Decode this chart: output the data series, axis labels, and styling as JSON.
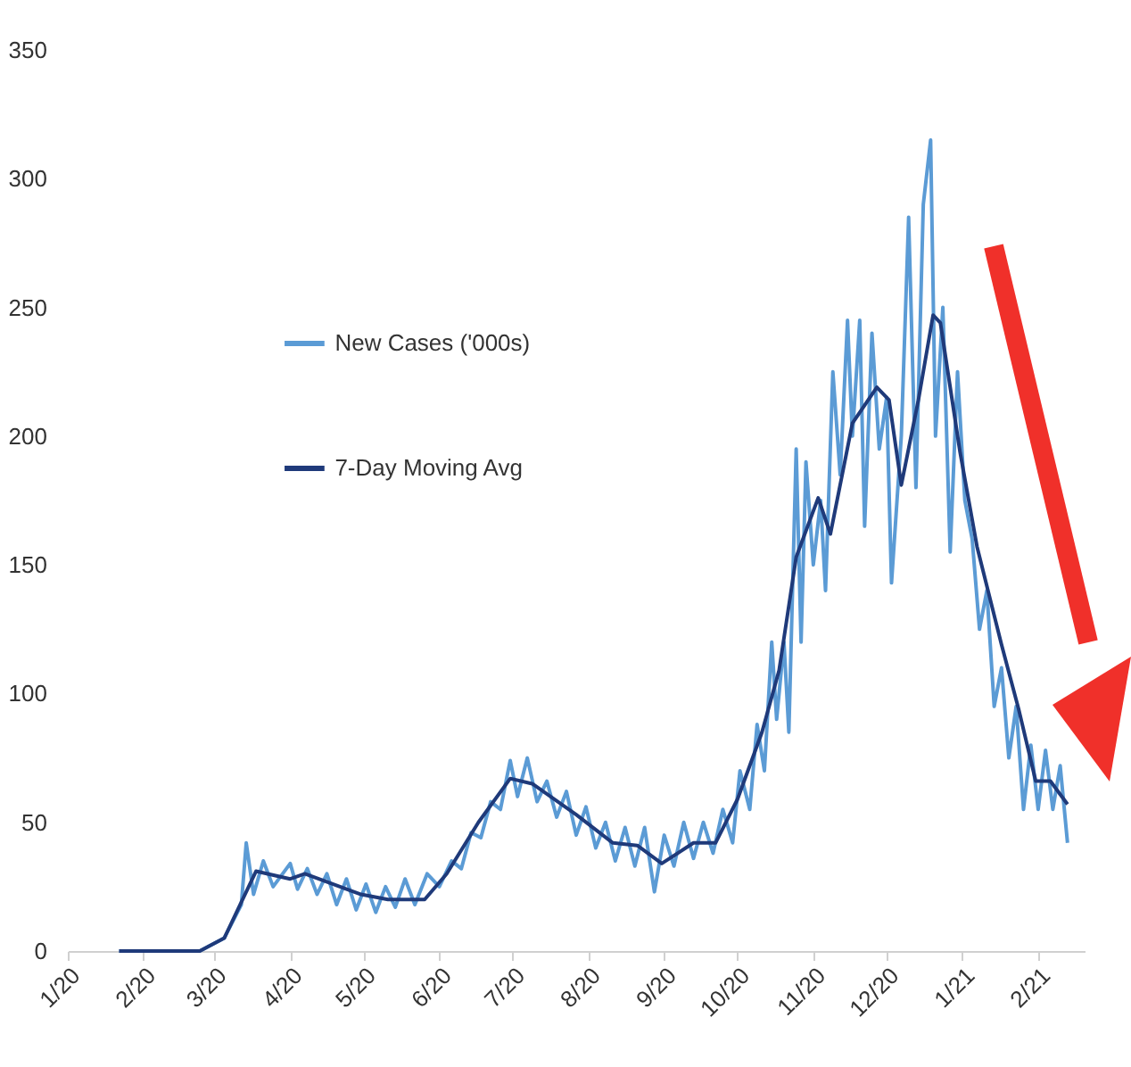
{
  "chart_data": {
    "type": "line",
    "xlim": [
      "2020-01-01",
      "2021-02-20"
    ],
    "ylim": [
      0,
      350
    ],
    "yticks": [
      0,
      50,
      100,
      150,
      200,
      250,
      300,
      350
    ],
    "xticks": [
      {
        "value": "2020-01-01",
        "label": "1/20"
      },
      {
        "value": "2020-02-01",
        "label": "2/20"
      },
      {
        "value": "2020-03-01",
        "label": "3/20"
      },
      {
        "value": "2020-04-01",
        "label": "4/20"
      },
      {
        "value": "2020-05-01",
        "label": "5/20"
      },
      {
        "value": "2020-06-01",
        "label": "6/20"
      },
      {
        "value": "2020-07-01",
        "label": "7/20"
      },
      {
        "value": "2020-08-01",
        "label": "8/20"
      },
      {
        "value": "2020-09-01",
        "label": "9/20"
      },
      {
        "value": "2020-10-01",
        "label": "10/20"
      },
      {
        "value": "2020-11-01",
        "label": "11/20"
      },
      {
        "value": "2020-12-01",
        "label": "12/20"
      },
      {
        "value": "2021-01-01",
        "label": "1/21"
      },
      {
        "value": "2021-02-01",
        "label": "2/21"
      }
    ],
    "legend": "top left",
    "series": [
      {
        "name": "New Cases ('000s)",
        "color": "#5b9bd5",
        "x": [
          "2020-01-22",
          "2020-02-24",
          "2020-03-05",
          "2020-03-12",
          "2020-03-14",
          "2020-03-17",
          "2020-03-21",
          "2020-03-25",
          "2020-04-01",
          "2020-04-04",
          "2020-04-08",
          "2020-04-12",
          "2020-04-16",
          "2020-04-20",
          "2020-04-24",
          "2020-04-28",
          "2020-05-02",
          "2020-05-06",
          "2020-05-10",
          "2020-05-14",
          "2020-05-18",
          "2020-05-22",
          "2020-05-27",
          "2020-06-01",
          "2020-06-06",
          "2020-06-10",
          "2020-06-14",
          "2020-06-18",
          "2020-06-22",
          "2020-06-26",
          "2020-06-30",
          "2020-07-03",
          "2020-07-07",
          "2020-07-11",
          "2020-07-15",
          "2020-07-19",
          "2020-07-23",
          "2020-07-27",
          "2020-07-31",
          "2020-08-04",
          "2020-08-08",
          "2020-08-12",
          "2020-08-16",
          "2020-08-20",
          "2020-08-24",
          "2020-08-28",
          "2020-09-01",
          "2020-09-05",
          "2020-09-09",
          "2020-09-13",
          "2020-09-17",
          "2020-09-21",
          "2020-09-25",
          "2020-09-29",
          "2020-10-02",
          "2020-10-06",
          "2020-10-09",
          "2020-10-12",
          "2020-10-15",
          "2020-10-17",
          "2020-10-20",
          "2020-10-22",
          "2020-10-25",
          "2020-10-27",
          "2020-10-29",
          "2020-11-01",
          "2020-11-04",
          "2020-11-06",
          "2020-11-09",
          "2020-11-12",
          "2020-11-15",
          "2020-11-17",
          "2020-11-20",
          "2020-11-22",
          "2020-11-25",
          "2020-11-28",
          "2020-12-01",
          "2020-12-03",
          "2020-12-07",
          "2020-12-10",
          "2020-12-13",
          "2020-12-16",
          "2020-12-19",
          "2020-12-21",
          "2020-12-24",
          "2020-12-27",
          "2020-12-30",
          "2021-01-02",
          "2021-01-05",
          "2021-01-08",
          "2021-01-11",
          "2021-01-14",
          "2021-01-17",
          "2021-01-20",
          "2021-01-23",
          "2021-01-26",
          "2021-01-29",
          "2021-02-01",
          "2021-02-04",
          "2021-02-07",
          "2021-02-10",
          "2021-02-13"
        ],
        "values": [
          0,
          0,
          5,
          18,
          42,
          22,
          35,
          25,
          34,
          24,
          32,
          22,
          30,
          18,
          28,
          16,
          26,
          15,
          25,
          17,
          28,
          18,
          30,
          25,
          35,
          32,
          46,
          44,
          58,
          55,
          74,
          60,
          75,
          58,
          66,
          52,
          62,
          45,
          56,
          40,
          50,
          35,
          48,
          33,
          48,
          23,
          45,
          33,
          50,
          36,
          50,
          38,
          55,
          42,
          70,
          55,
          88,
          70,
          120,
          90,
          120,
          85,
          195,
          120,
          190,
          150,
          175,
          140,
          225,
          185,
          245,
          200,
          245,
          165,
          240,
          195,
          215,
          143,
          200,
          285,
          180,
          290,
          315,
          200,
          250,
          155,
          225,
          175,
          160,
          125,
          140,
          95,
          110,
          75,
          95,
          55,
          80,
          55,
          78,
          55,
          72,
          42
        ]
      },
      {
        "name": "7-Day Moving Avg",
        "color": "#1f3a7a",
        "x": [
          "2020-01-22",
          "2020-02-24",
          "2020-03-05",
          "2020-03-18",
          "2020-04-01",
          "2020-04-07",
          "2020-04-30",
          "2020-05-11",
          "2020-05-26",
          "2020-06-04",
          "2020-06-17",
          "2020-06-30",
          "2020-07-09",
          "2020-07-27",
          "2020-08-11",
          "2020-08-21",
          "2020-08-31",
          "2020-09-13",
          "2020-09-22",
          "2020-10-01",
          "2020-10-11",
          "2020-10-18",
          "2020-10-25",
          "2020-11-03",
          "2020-11-08",
          "2020-11-17",
          "2020-11-27",
          "2020-12-02",
          "2020-12-07",
          "2020-12-14",
          "2020-12-20",
          "2020-12-23",
          "2020-12-31",
          "2021-01-07",
          "2021-01-17",
          "2021-01-24",
          "2021-01-31",
          "2021-02-06",
          "2021-02-13"
        ],
        "values": [
          0,
          0,
          5,
          31,
          28,
          30,
          22,
          20,
          20,
          30,
          50,
          67,
          65,
          53,
          42,
          41,
          34,
          42,
          42,
          59,
          85,
          109,
          153,
          176,
          162,
          205,
          219,
          214,
          181,
          214,
          247,
          244,
          194,
          157,
          119,
          94,
          66,
          66,
          57
        ]
      }
    ]
  }
}
